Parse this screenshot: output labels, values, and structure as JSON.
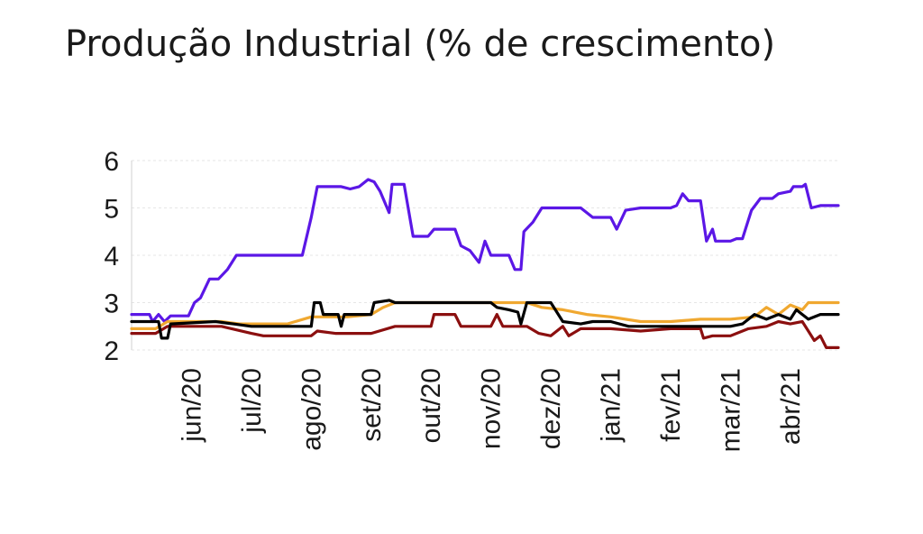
{
  "title": "Produção Industrial (% de crescimento)",
  "chart_data": {
    "type": "line",
    "title": "Produção Industrial (% de crescimento)",
    "xlabel": "",
    "ylabel": "",
    "ylim": [
      2,
      6
    ],
    "yticks": [
      6,
      5,
      4,
      3,
      2
    ],
    "grid": true,
    "legend": "none",
    "categories": [
      "jun/20",
      "jul/20",
      "ago/20",
      "set/20",
      "out/20",
      "nov/20",
      "dez/20",
      "jan/21",
      "fev/21",
      "mar/21",
      "abr/21"
    ],
    "x_range_months": [
      0.0,
      11.8
    ],
    "x_note_units": "months from 2020-05 (category positions)",
    "series": [
      {
        "color": "#5b17e6",
        "points": [
          [
            0.0,
            2.75
          ],
          [
            0.3,
            2.75
          ],
          [
            0.35,
            2.6
          ],
          [
            0.45,
            2.75
          ],
          [
            0.55,
            2.6
          ],
          [
            0.65,
            2.72
          ],
          [
            0.95,
            2.72
          ],
          [
            1.05,
            3.0
          ],
          [
            1.15,
            3.1
          ],
          [
            1.3,
            3.5
          ],
          [
            1.45,
            3.5
          ],
          [
            1.6,
            3.7
          ],
          [
            1.75,
            4.0
          ],
          [
            2.1,
            4.0
          ],
          [
            2.6,
            4.0
          ],
          [
            2.85,
            4.0
          ],
          [
            3.0,
            4.8
          ],
          [
            3.1,
            5.45
          ],
          [
            3.5,
            5.45
          ],
          [
            3.65,
            5.4
          ],
          [
            3.8,
            5.45
          ],
          [
            3.95,
            5.6
          ],
          [
            4.05,
            5.55
          ],
          [
            4.15,
            5.35
          ],
          [
            4.3,
            4.9
          ],
          [
            4.35,
            5.5
          ],
          [
            4.55,
            5.5
          ],
          [
            4.7,
            4.4
          ],
          [
            4.95,
            4.4
          ],
          [
            5.05,
            4.55
          ],
          [
            5.4,
            4.55
          ],
          [
            5.5,
            4.2
          ],
          [
            5.65,
            4.1
          ],
          [
            5.8,
            3.85
          ],
          [
            5.9,
            4.3
          ],
          [
            6.0,
            4.0
          ],
          [
            6.3,
            4.0
          ],
          [
            6.4,
            3.7
          ],
          [
            6.5,
            3.7
          ],
          [
            6.55,
            4.5
          ],
          [
            6.7,
            4.7
          ],
          [
            6.85,
            5.0
          ],
          [
            7.5,
            5.0
          ],
          [
            7.7,
            4.8
          ],
          [
            8.0,
            4.8
          ],
          [
            8.1,
            4.55
          ],
          [
            8.25,
            4.95
          ],
          [
            8.5,
            5.0
          ],
          [
            9.0,
            5.0
          ],
          [
            9.1,
            5.05
          ],
          [
            9.2,
            5.3
          ],
          [
            9.3,
            5.15
          ],
          [
            9.5,
            5.15
          ],
          [
            9.6,
            4.3
          ],
          [
            9.7,
            4.55
          ],
          [
            9.75,
            4.3
          ],
          [
            10.0,
            4.3
          ],
          [
            10.1,
            4.35
          ],
          [
            10.2,
            4.35
          ],
          [
            10.35,
            4.95
          ],
          [
            10.5,
            5.2
          ],
          [
            10.7,
            5.2
          ],
          [
            10.8,
            5.3
          ],
          [
            11.0,
            5.35
          ],
          [
            11.05,
            5.45
          ],
          [
            11.2,
            5.45
          ],
          [
            11.25,
            5.5
          ],
          [
            11.35,
            5.0
          ],
          [
            11.5,
            5.05
          ],
          [
            11.8,
            5.05
          ]
        ]
      },
      {
        "color": "#f0a830",
        "points": [
          [
            0.0,
            2.45
          ],
          [
            0.4,
            2.45
          ],
          [
            0.6,
            2.6
          ],
          [
            1.0,
            2.6
          ],
          [
            1.5,
            2.6
          ],
          [
            1.8,
            2.55
          ],
          [
            2.2,
            2.55
          ],
          [
            2.6,
            2.55
          ],
          [
            3.0,
            2.7
          ],
          [
            3.6,
            2.7
          ],
          [
            4.0,
            2.75
          ],
          [
            4.2,
            2.9
          ],
          [
            4.4,
            3.0
          ],
          [
            5.0,
            3.0
          ],
          [
            6.0,
            3.0
          ],
          [
            6.6,
            3.0
          ],
          [
            6.85,
            2.9
          ],
          [
            7.2,
            2.85
          ],
          [
            7.6,
            2.75
          ],
          [
            8.0,
            2.7
          ],
          [
            8.5,
            2.6
          ],
          [
            9.0,
            2.6
          ],
          [
            9.5,
            2.65
          ],
          [
            10.0,
            2.65
          ],
          [
            10.4,
            2.7
          ],
          [
            10.6,
            2.9
          ],
          [
            10.8,
            2.75
          ],
          [
            11.0,
            2.95
          ],
          [
            11.2,
            2.85
          ],
          [
            11.3,
            3.0
          ],
          [
            11.8,
            3.0
          ]
        ]
      },
      {
        "color": "#8b0f0f",
        "points": [
          [
            0.0,
            2.35
          ],
          [
            0.4,
            2.35
          ],
          [
            0.6,
            2.5
          ],
          [
            1.5,
            2.5
          ],
          [
            2.0,
            2.35
          ],
          [
            2.2,
            2.3
          ],
          [
            3.0,
            2.3
          ],
          [
            3.1,
            2.4
          ],
          [
            3.4,
            2.35
          ],
          [
            4.0,
            2.35
          ],
          [
            4.4,
            2.5
          ],
          [
            5.0,
            2.5
          ],
          [
            5.05,
            2.75
          ],
          [
            5.4,
            2.75
          ],
          [
            5.5,
            2.5
          ],
          [
            6.0,
            2.5
          ],
          [
            6.1,
            2.75
          ],
          [
            6.2,
            2.5
          ],
          [
            6.6,
            2.5
          ],
          [
            6.8,
            2.35
          ],
          [
            7.0,
            2.3
          ],
          [
            7.2,
            2.5
          ],
          [
            7.3,
            2.3
          ],
          [
            7.5,
            2.45
          ],
          [
            8.0,
            2.45
          ],
          [
            8.5,
            2.4
          ],
          [
            9.0,
            2.45
          ],
          [
            9.5,
            2.45
          ],
          [
            9.55,
            2.25
          ],
          [
            9.7,
            2.3
          ],
          [
            10.0,
            2.3
          ],
          [
            10.3,
            2.45
          ],
          [
            10.6,
            2.5
          ],
          [
            10.8,
            2.6
          ],
          [
            11.0,
            2.55
          ],
          [
            11.2,
            2.6
          ],
          [
            11.3,
            2.4
          ],
          [
            11.4,
            2.2
          ],
          [
            11.5,
            2.3
          ],
          [
            11.6,
            2.05
          ],
          [
            11.8,
            2.05
          ]
        ]
      },
      {
        "color": "#000000",
        "points": [
          [
            0.0,
            2.6
          ],
          [
            0.45,
            2.6
          ],
          [
            0.5,
            2.25
          ],
          [
            0.6,
            2.25
          ],
          [
            0.65,
            2.55
          ],
          [
            1.4,
            2.6
          ],
          [
            1.7,
            2.55
          ],
          [
            2.0,
            2.5
          ],
          [
            3.0,
            2.5
          ],
          [
            3.05,
            3.0
          ],
          [
            3.15,
            3.0
          ],
          [
            3.2,
            2.75
          ],
          [
            3.45,
            2.75
          ],
          [
            3.5,
            2.5
          ],
          [
            3.55,
            2.75
          ],
          [
            4.0,
            2.75
          ],
          [
            4.05,
            3.0
          ],
          [
            4.3,
            3.05
          ],
          [
            4.4,
            3.0
          ],
          [
            5.0,
            3.0
          ],
          [
            5.5,
            3.0
          ],
          [
            6.0,
            3.0
          ],
          [
            6.1,
            2.9
          ],
          [
            6.3,
            2.85
          ],
          [
            6.45,
            2.8
          ],
          [
            6.5,
            2.55
          ],
          [
            6.6,
            3.0
          ],
          [
            7.0,
            3.0
          ],
          [
            7.2,
            2.6
          ],
          [
            7.5,
            2.55
          ],
          [
            7.7,
            2.6
          ],
          [
            8.0,
            2.6
          ],
          [
            8.3,
            2.5
          ],
          [
            9.0,
            2.5
          ],
          [
            9.5,
            2.5
          ],
          [
            10.0,
            2.5
          ],
          [
            10.2,
            2.55
          ],
          [
            10.4,
            2.75
          ],
          [
            10.6,
            2.65
          ],
          [
            10.8,
            2.75
          ],
          [
            11.0,
            2.65
          ],
          [
            11.1,
            2.85
          ],
          [
            11.3,
            2.65
          ],
          [
            11.5,
            2.75
          ],
          [
            11.8,
            2.75
          ]
        ]
      }
    ]
  }
}
